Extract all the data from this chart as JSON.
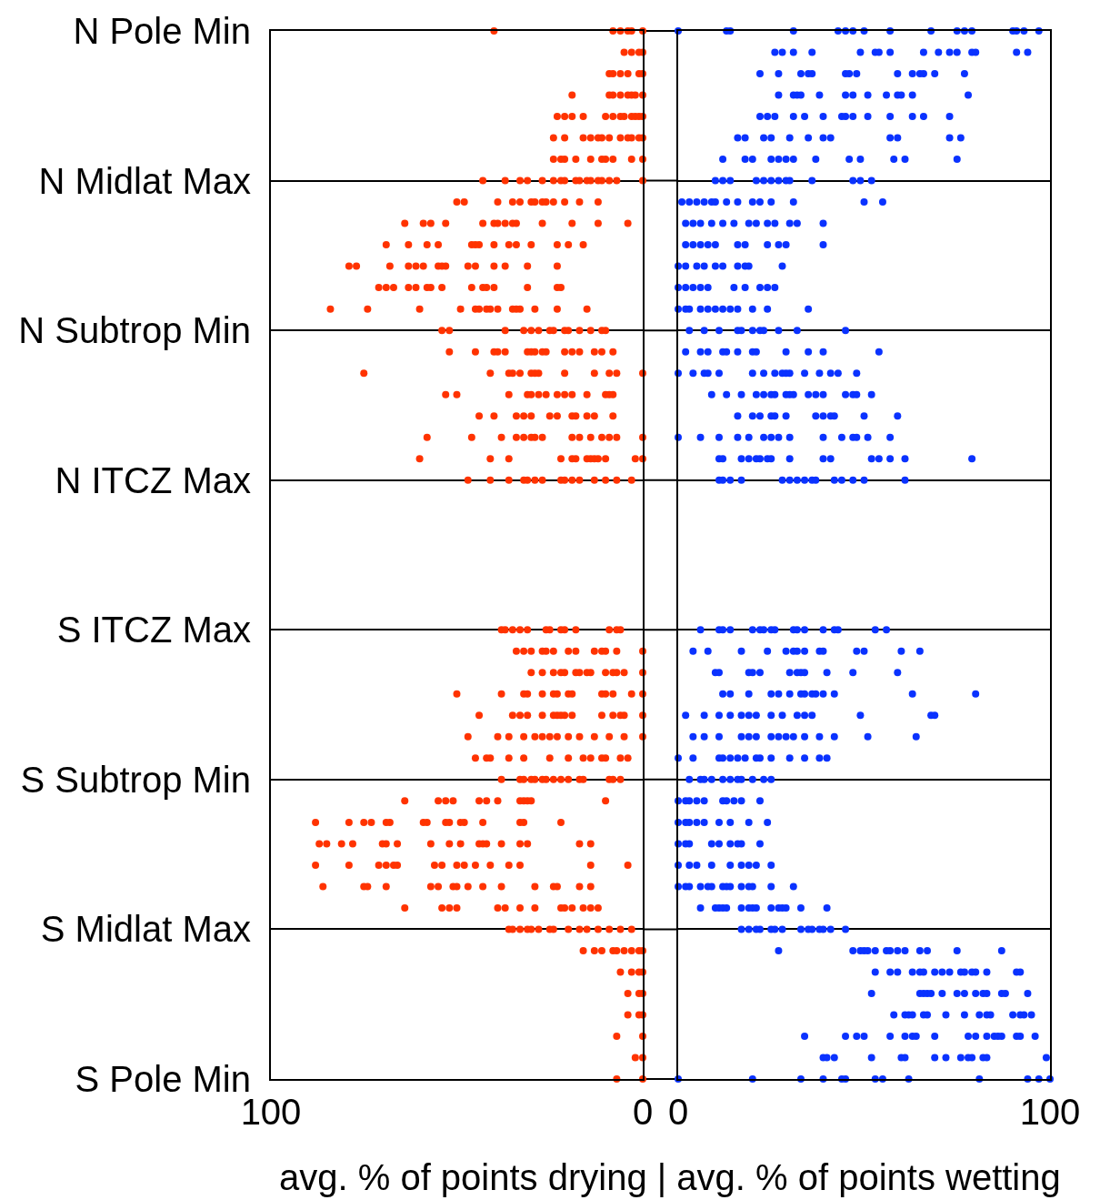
{
  "chart_data": [
    {
      "type": "scatter",
      "orientation": "horizontal",
      "xlabel": "avg. % of points drying | avg. % of points wetting",
      "xlim": [
        100,
        0
      ],
      "xticks": [
        100,
        0
      ],
      "categories": [
        "N Pole Min",
        null,
        null,
        null,
        null,
        null,
        null,
        "N Midlat Max",
        null,
        null,
        null,
        null,
        null,
        null,
        "N Subtrop Min",
        null,
        null,
        null,
        null,
        null,
        null,
        "N ITCZ Max",
        null,
        null,
        null,
        null,
        null,
        null,
        "S ITCZ Max",
        null,
        null,
        null,
        null,
        null,
        null,
        "S Subtrop Min",
        null,
        null,
        null,
        null,
        null,
        null,
        "S Midlat Max",
        null,
        null,
        null,
        null,
        null,
        null,
        "S Pole Min"
      ],
      "grid": "y",
      "marker": "circle",
      "series": [
        {
          "color": "#ff3300",
          "values": [
            40,
            5,
            9,
            19,
            23,
            24,
            24,
            43,
            50,
            64,
            69,
            79,
            71,
            84,
            54,
            52,
            75,
            53,
            44,
            58,
            60,
            47,
            null,
            null,
            null,
            null,
            null,
            null,
            38,
            34,
            30,
            50,
            44,
            47,
            45,
            38,
            64,
            88,
            87,
            88,
            86,
            64,
            36,
            16,
            6,
            4,
            4,
            7,
            2,
            7
          ]
        },
        {
          "color": "#ff3300",
          "values": [
            8,
            3,
            8,
            9,
            21,
            21,
            22,
            37,
            48,
            59,
            63,
            77,
            69,
            74,
            52,
            45,
            41,
            50,
            40,
            46,
            41,
            41,
            null,
            null,
            null,
            null,
            null,
            null,
            37,
            32,
            27,
            38,
            35,
            39,
            42,
            33,
            55,
            79,
            85,
            79,
            75,
            54,
            35,
            13,
            3,
            1,
            1,
            0,
            0,
            0
          ]
        },
        {
          "color": "#ff3300",
          "values": [
            6,
            1,
            6,
            8,
            19,
            16,
            21,
            33,
            39,
            57,
            58,
            68,
            67,
            60,
            37,
            40,
            36,
            36,
            34,
            38,
            36,
            36,
            null,
            null,
            null,
            null,
            null,
            null,
            35,
            30,
            24,
            32,
            33,
            36,
            41,
            32,
            53,
            75,
            81,
            71,
            74,
            52,
            33,
            11,
            1,
            0,
            0,
            null,
            null,
            null
          ]
        },
        {
          "color": "#ff3300",
          "values": [
            4,
            0,
            4,
            6,
            16,
            14,
            18,
            31,
            35,
            53,
            55,
            63,
            63,
            49,
            32,
            39,
            35,
            31,
            32,
            34,
            22,
            32,
            null,
            null,
            null,
            null,
            null,
            null,
            33,
            27,
            22,
            31,
            31,
            32,
            36,
            30,
            51,
            73,
            78,
            69,
            69,
            50,
            31,
            8,
            0,
            null,
            null,
            null,
            null,
            null
          ]
        },
        {
          "color": "#ff3300",
          "values": [
            3,
            null,
            1,
            4,
            10,
            12,
            14,
            27,
            33,
            43,
            46,
            61,
            61,
            45,
            30,
            37,
            33,
            30,
            30,
            32,
            19,
            31,
            null,
            null,
            null,
            null,
            null,
            null,
            31,
            26,
            21,
            27,
            27,
            29,
            32,
            29,
            44,
            69,
            70,
            67,
            57,
            39,
            30,
            7,
            null,
            null,
            null,
            null,
            null,
            null
          ]
        },
        {
          "color": "#ff3300",
          "values": [
            0,
            null,
            0,
            3,
            8,
            11,
            11,
            24,
            30,
            40,
            45,
            59,
            58,
            44,
            28,
            31,
            30,
            28,
            25,
            30,
            18,
            29,
            null,
            null,
            null,
            null,
            null,
            null,
            26,
            24,
            18,
            24,
            24,
            27,
            25,
            27,
            42,
            68,
            69,
            66,
            55,
            37,
            28,
            5,
            null,
            null,
            null,
            null,
            null,
            null
          ]
        },
        {
          "color": "#ff3300",
          "values": [
            null,
            null,
            null,
            2,
            6,
            9,
            10,
            22,
            29,
            39,
            44,
            55,
            57,
            42,
            25,
            30,
            29,
            26,
            23,
            29,
            15,
            27,
            null,
            null,
            null,
            null,
            null,
            null,
            25,
            20,
            17,
            23,
            23,
            25,
            20,
            26,
            39,
            59,
            66,
            56,
            51,
            33,
            25,
            3,
            null,
            null,
            null,
            null,
            null,
            null
          ]
        },
        {
          "color": "#ff3300",
          "values": [
            null,
            null,
            null,
            0,
            5,
            6,
            8,
            21,
            27,
            37,
            40,
            54,
            54,
            41,
            24,
            29,
            28,
            23,
            19,
            27,
            14,
            22,
            null,
            null,
            null,
            null,
            null,
            null,
            22,
            18,
            15,
            20,
            22,
            23,
            16,
            24,
            33,
            58,
            57,
            54,
            50,
            29,
            24,
            1,
            null,
            null,
            null,
            null,
            null,
            null
          ]
        },
        {
          "color": "#ff3300",
          "values": [
            null,
            null,
            null,
            null,
            3,
            4,
            3,
            18,
            26,
            35,
            36,
            53,
            46,
            39,
            21,
            27,
            21,
            21,
            18,
            19,
            13,
            21,
            null,
            null,
            null,
            null,
            null,
            null,
            21,
            13,
            14,
            19,
            21,
            20,
            14,
            22,
            32,
            53,
            52,
            50,
            47,
            22,
            20,
            0,
            null,
            null,
            null,
            null,
            null,
            null
          ]
        },
        {
          "color": "#ff3300",
          "values": [
            null,
            null,
            null,
            null,
            2,
            3,
            0,
            17,
            24,
            34,
            34,
            47,
            43,
            35,
            20,
            26,
            13,
            19,
            15,
            17,
            12,
            19,
            null,
            null,
            null,
            null,
            null,
            null,
            18,
            11,
            10,
            11,
            19,
            17,
            11,
            20,
            31,
            52,
            49,
            48,
            43,
            21,
            17,
            null,
            null,
            null,
            null,
            null,
            null,
            null
          ]
        },
        {
          "color": "#ff3300",
          "values": [
            null,
            null,
            null,
            null,
            1,
            1,
            null,
            15,
            21,
            27,
            30,
            45,
            42,
            34,
            17,
            21,
            9,
            15,
            13,
            14,
            10,
            17,
            null,
            null,
            null,
            null,
            null,
            null,
            9,
            10,
            8,
            10,
            11,
            13,
            10,
            17,
            30,
            49,
            44,
            45,
            38,
            19,
            15,
            null,
            null,
            null,
            null,
            null,
            null,
            null
          ]
        },
        {
          "color": "#ff3300",
          "values": [
            null,
            null,
            null,
            null,
            0,
            0,
            null,
            14,
            17,
            19,
            23,
            40,
            40,
            33,
            14,
            19,
            7,
            10,
            8,
            11,
            2,
            13,
            null,
            null,
            null,
            null,
            null,
            null,
            7,
            7,
            7,
            8,
            8,
            9,
            6,
            16,
            10,
            48,
            43,
            41,
            29,
            16,
            12,
            null,
            null,
            null,
            null,
            null,
            null,
            null
          ]
        },
        {
          "color": "#ff3300",
          "values": [
            null,
            null,
            null,
            null,
            null,
            null,
            null,
            12,
            12,
            12,
            20,
            37,
            31,
            29,
            11,
            17,
            0,
            9,
            null,
            9,
            0,
            10,
            null,
            null,
            null,
            null,
            null,
            null,
            6,
            0,
            5,
            3,
            6,
            5,
            4,
            9,
            null,
            43,
            42,
            36,
            24,
            14,
            9,
            null,
            null,
            null,
            null,
            null,
            null,
            null
          ]
        },
        {
          "color": "#ff3300",
          "values": [
            null,
            null,
            null,
            null,
            null,
            null,
            null,
            11,
            null,
            4,
            16,
            31,
            23,
            23,
            10,
            13,
            null,
            8,
            null,
            7,
            null,
            7,
            null,
            null,
            null,
            null,
            null,
            null,
            null,
            null,
            0,
            0,
            5,
            0,
            null,
            8,
            null,
            33,
            38,
            33,
            23,
            12,
            6,
            null,
            null,
            null,
            null,
            null,
            null,
            null
          ]
        },
        {
          "color": "#ff3300",
          "values": [
            null,
            null,
            null,
            null,
            null,
            null,
            null,
            9,
            null,
            null,
            null,
            23,
            22,
            15,
            null,
            11,
            null,
            null,
            null,
            0,
            null,
            3,
            null,
            null,
            null,
            null,
            null,
            null,
            null,
            null,
            null,
            null,
            0,
            null,
            null,
            6,
            null,
            32,
            33,
            14,
            17,
            null,
            3,
            null,
            null,
            null,
            null,
            null,
            null,
            null
          ]
        },
        {
          "color": "#ff3300",
          "values": [
            null,
            null,
            null,
            null,
            null,
            null,
            null,
            7,
            null,
            null,
            null,
            null,
            null,
            null,
            null,
            8,
            null,
            null,
            null,
            null,
            null,
            null,
            null,
            null,
            null,
            null,
            null,
            null,
            null,
            null,
            null,
            null,
            null,
            null,
            null,
            null,
            null,
            22,
            31,
            4,
            14,
            null,
            null,
            null,
            null,
            null,
            null,
            null,
            null,
            null
          ]
        },
        {
          "color": "#ff3300",
          "values": [
            null,
            null,
            null,
            null,
            null,
            null,
            null,
            0,
            null,
            null,
            null,
            null,
            null,
            null,
            null,
            null,
            null,
            null,
            null,
            null,
            null,
            null,
            null,
            null,
            null,
            null,
            null,
            null,
            null,
            null,
            null,
            null,
            null,
            null,
            null,
            null,
            null,
            null,
            17,
            null,
            null,
            null,
            null,
            null,
            null,
            null,
            null,
            null,
            null,
            null
          ]
        },
        {
          "color": "#ff3300",
          "values": [
            null,
            null,
            null,
            null,
            null,
            null,
            null,
            null,
            null,
            null,
            null,
            null,
            null,
            null,
            null,
            null,
            null,
            null,
            null,
            null,
            null,
            null,
            null,
            null,
            null,
            null,
            null,
            null,
            null,
            null,
            null,
            null,
            null,
            null,
            null,
            null,
            null,
            null,
            14,
            null,
            null,
            null,
            null,
            null,
            null,
            null,
            null,
            null,
            null,
            null
          ]
        }
      ]
    },
    {
      "type": "scatter",
      "orientation": "horizontal",
      "xlim": [
        0,
        100
      ],
      "xticks": [
        0,
        100
      ],
      "categories": [
        null,
        null,
        null,
        null,
        null,
        null,
        null,
        null,
        null,
        null,
        null,
        null,
        null,
        null,
        null,
        null,
        null,
        null,
        null,
        null,
        null,
        null,
        null,
        null,
        null,
        null,
        null,
        null,
        null,
        null,
        null,
        null,
        null,
        null,
        null,
        null,
        null,
        null,
        null,
        null,
        null,
        null,
        null,
        null,
        null,
        null,
        null,
        null,
        null,
        null
      ],
      "grid": "y",
      "marker": "circle",
      "series": [
        {
          "color": "#0a32ff",
          "values": [
            0,
            26,
            22,
            27,
            22,
            16,
            12,
            10,
            1,
            2,
            2,
            0,
            0,
            0,
            3,
            2,
            0,
            9,
            16,
            0,
            11,
            11,
            null,
            null,
            null,
            null,
            null,
            null,
            6,
            4,
            10,
            12,
            2,
            4,
            0,
            3,
            0,
            0,
            0,
            0,
            0,
            6,
            17,
            27,
            53,
            52,
            58,
            34,
            39,
            0
          ]
        },
        {
          "color": "#0a32ff",
          "values": [
            13,
            28,
            27,
            31,
            24,
            18,
            18,
            12,
            3,
            4,
            4,
            2,
            2,
            2,
            7,
            6,
            4,
            13,
            20,
            6,
            12,
            12,
            null,
            null,
            null,
            null,
            null,
            null,
            11,
            8,
            11,
            14,
            7,
            7,
            4,
            6,
            2,
            2,
            2,
            3,
            2,
            10,
            19,
            47,
            57,
            65,
            61,
            45,
            40,
            20
          ]
        },
        {
          "color": "#0a32ff",
          "values": [
            14,
            31,
            33,
            32,
            26,
            23,
            20,
            14,
            5,
            6,
            6,
            5,
            4,
            3,
            11,
            8,
            7,
            17,
            22,
            11,
            17,
            14,
            null,
            null,
            null,
            null,
            null,
            null,
            12,
            17,
            19,
            19,
            11,
            11,
            11,
            7,
            3,
            3,
            3,
            5,
            3,
            11,
            21,
            49,
            59,
            66,
            62,
            48,
            42,
            33
          ]
        },
        {
          "color": "#0a32ff",
          "values": [
            31,
            36,
            35,
            33,
            31,
            25,
            25,
            21,
            7,
            9,
            8,
            7,
            6,
            6,
            16,
            12,
            8,
            21,
            25,
            16,
            19,
            17,
            null,
            null,
            null,
            null,
            null,
            null,
            14,
            24,
            20,
            25,
            14,
            17,
            12,
            9,
            5,
            5,
            9,
            9,
            6,
            12,
            22,
            50,
            63,
            67,
            63,
            50,
            52,
            39
          ]
        },
        {
          "color": "#0a32ff",
          "values": [
            43,
            49,
            36,
            38,
            34,
            30,
            27,
            23,
            9,
            12,
            10,
            10,
            8,
            8,
            17,
            13,
            11,
            23,
            26,
            19,
            21,
            28,
            null,
            null,
            null,
            null,
            null,
            null,
            20,
            29,
            22,
            27,
            17,
            19,
            14,
            12,
            7,
            7,
            11,
            14,
            8,
            13,
            25,
            51,
            65,
            68,
            66,
            57,
            60,
            44
          ]
        },
        {
          "color": "#0a32ff",
          "values": [
            45,
            53,
            45,
            45,
            39,
            35,
            29,
            25,
            10,
            15,
            16,
            12,
            15,
            10,
            20,
            16,
            20,
            25,
            29,
            23,
            22,
            30,
            null,
            null,
            null,
            null,
            null,
            null,
            22,
            31,
            30,
            30,
            19,
            21,
            16,
            14,
            12,
            11,
            14,
            17,
            9,
            17,
            26,
            53,
            66,
            71,
            67,
            61,
            61,
            45
          ]
        },
        {
          "color": "#0a32ff",
          "values": [
            47,
            54,
            46,
            47,
            44,
            39,
            31,
            27,
            13,
            19,
            18,
            16,
            18,
            12,
            22,
            20,
            23,
            26,
            37,
            25,
            24,
            32,
            null,
            null,
            null,
            null,
            null,
            null,
            23,
            32,
            32,
            33,
            21,
            25,
            18,
            16,
            13,
            14,
            16,
            19,
            12,
            19,
            28,
            56,
            69,
            75,
            72,
            63,
            69,
            53
          ]
        },
        {
          "color": "#0a32ff",
          "values": [
            50,
            57,
            48,
            51,
            45,
            41,
            37,
            29,
            16,
            21,
            24,
            18,
            22,
            14,
            23,
            21,
            26,
            29,
            39,
            27,
            25,
            34,
            null,
            null,
            null,
            null,
            null,
            null,
            25,
            34,
            33,
            34,
            25,
            27,
            21,
            17,
            15,
            19,
            17,
            21,
            13,
            20,
            33,
            57,
            71,
            77,
            77,
            64,
            72,
            55
          ]
        },
        {
          "color": "#0a32ff",
          "values": [
            57,
            66,
            59,
            56,
            47,
            57,
            46,
            30,
            20,
            24,
            27,
            19,
            24,
            16,
            27,
            29,
            28,
            30,
            41,
            30,
            30,
            36,
            null,
            null,
            null,
            null,
            null,
            null,
            26,
            38,
            34,
            36,
            28,
            29,
            22,
            20,
            17,
            24,
            22,
            25,
            14,
            21,
            35,
            59,
            73,
            80,
            81,
            69,
            76,
            62
          ]
        },
        {
          "color": "#0a32ff",
          "values": [
            68,
            70,
            63,
            59,
            51,
            59,
            49,
            36,
            22,
            26,
            29,
            28,
            26,
            20,
            32,
            35,
            29,
            31,
            42,
            39,
            39,
            37,
            null,
            null,
            null,
            null,
            null,
            null,
            31,
            39,
            40,
            37,
            32,
            31,
            25,
            23,
            22,
            null,
            null,
            null,
            17,
            25,
            36,
            61,
            76,
            82,
            83,
            78,
            78,
            81
          ]
        },
        {
          "color": "#0a32ff",
          "values": [
            75,
            73,
            65,
            60,
            57,
            73,
            58,
            47,
            25,
            30,
            39,
            null,
            null,
            24,
            45,
            39,
            30,
            35,
            50,
            44,
            41,
            42,
            null,
            null,
            null,
            null,
            null,
            null,
            32,
            48,
            47,
            39,
            34,
            34,
            30,
            25,
            null,
            null,
            null,
            null,
            19,
            27,
            38,
            65,
            77,
            83,
            84,
            80,
            79,
            94
          ]
        },
        {
          "color": "#0a32ff",
          "values": [
            77,
            75,
            66,
            63,
            63,
            76,
            61,
            49,
            31,
            32,
            null,
            null,
            null,
            35,
            null,
            54,
            34,
            37,
            59,
            47,
            52,
            44,
            null,
            null,
            null,
            null,
            null,
            null,
            34,
            50,
            59,
            42,
            36,
            38,
            34,
            null,
            null,
            null,
            null,
            null,
            20,
            28,
            39,
            67,
            79,
            87,
            90,
            83,
            82,
            97
          ]
        },
        {
          "color": "#0a32ff",
          "values": [
            79,
            79,
            69,
            78,
            66,
            null,
            75,
            52,
            50,
            39,
            null,
            null,
            null,
            null,
            null,
            null,
            38,
            39,
            null,
            48,
            54,
            47,
            null,
            null,
            null,
            null,
            null,
            null,
            39,
            60,
            null,
            63,
            49,
            42,
            38,
            null,
            null,
            null,
            null,
            null,
            25,
            29,
            41,
            75,
            80,
            88,
            92,
            85,
            83,
            100
          ]
        },
        {
          "color": "#0a32ff",
          "values": [
            90,
            80,
            77,
            null,
            73,
            null,
            null,
            null,
            55,
            null,
            null,
            null,
            null,
            null,
            null,
            null,
            41,
            45,
            null,
            51,
            57,
            50,
            null,
            null,
            null,
            null,
            null,
            null,
            42,
            65,
            null,
            80,
            68,
            51,
            40,
            null,
            null,
            null,
            null,
            null,
            31,
            33,
            45,
            87,
            83,
            94,
            93,
            86,
            99,
            null
          ]
        },
        {
          "color": "#0a32ff",
          "values": [
            91,
            91,
            null,
            null,
            null,
            null,
            null,
            null,
            null,
            null,
            null,
            null,
            null,
            null,
            null,
            null,
            43,
            47,
            null,
            57,
            61,
            61,
            null,
            null,
            null,
            null,
            null,
            null,
            43,
            null,
            null,
            null,
            69,
            64,
            null,
            null,
            null,
            null,
            null,
            null,
            null,
            40,
            null,
            null,
            91,
            null,
            95,
            87,
            null,
            null
          ]
        },
        {
          "color": "#0a32ff",
          "values": [
            93,
            94,
            null,
            null,
            null,
            null,
            null,
            null,
            null,
            null,
            null,
            null,
            null,
            null,
            null,
            null,
            48,
            48,
            null,
            null,
            79,
            null,
            null,
            null,
            null,
            null,
            null,
            null,
            53,
            null,
            null,
            null,
            null,
            null,
            null,
            null,
            null,
            null,
            null,
            null,
            null,
            null,
            null,
            null,
            92,
            null,
            null,
            91,
            null,
            null
          ]
        },
        {
          "color": "#0a32ff",
          "values": [
            97,
            null,
            null,
            null,
            null,
            null,
            null,
            null,
            null,
            null,
            null,
            null,
            null,
            null,
            null,
            null,
            null,
            52,
            null,
            null,
            null,
            null,
            null,
            null,
            null,
            null,
            null,
            null,
            56,
            null,
            null,
            null,
            null,
            null,
            null,
            null,
            null,
            null,
            null,
            null,
            null,
            null,
            null,
            null,
            null,
            null,
            null,
            92,
            null,
            null
          ]
        },
        {
          "color": "#0a32ff",
          "values": [
            null,
            null,
            null,
            null,
            null,
            null,
            null,
            null,
            null,
            null,
            null,
            null,
            null,
            null,
            null,
            null,
            null,
            null,
            null,
            null,
            null,
            null,
            null,
            null,
            null,
            null,
            null,
            null,
            null,
            null,
            null,
            null,
            null,
            null,
            null,
            null,
            null,
            null,
            null,
            null,
            null,
            null,
            null,
            null,
            null,
            null,
            null,
            96,
            null,
            null
          ]
        }
      ]
    }
  ]
}
